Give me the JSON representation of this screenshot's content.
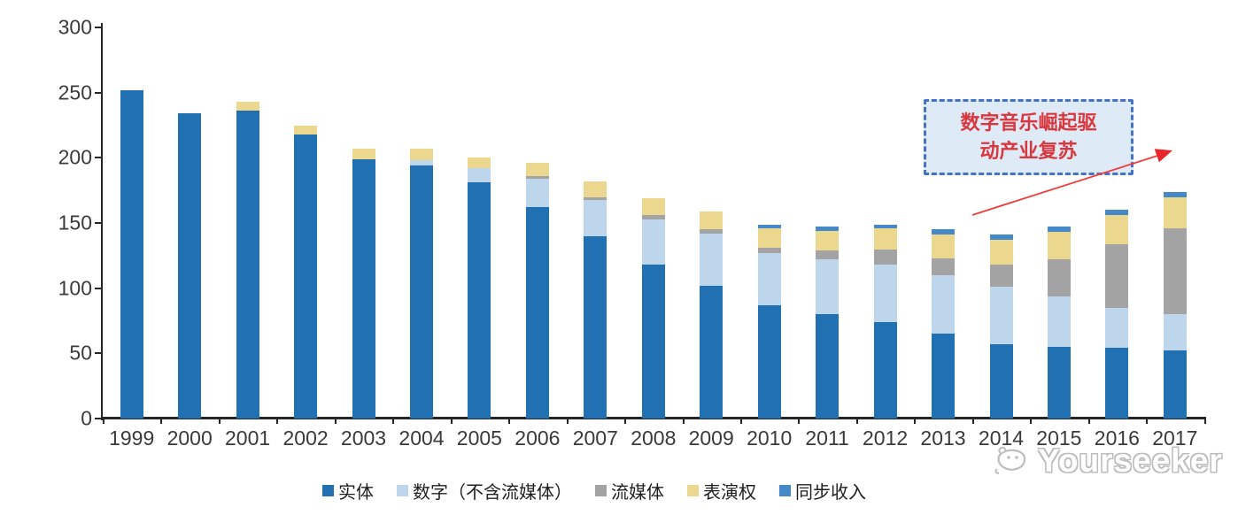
{
  "chart_data": {
    "type": "bar",
    "stacked": true,
    "title": "",
    "xlabel": "",
    "ylabel": "",
    "ylim": [
      0,
      300
    ],
    "yticks": [
      0,
      50,
      100,
      150,
      200,
      250,
      300
    ],
    "grid": false,
    "legend_position": "bottom",
    "categories": [
      "1999",
      "2000",
      "2001",
      "2002",
      "2003",
      "2004",
      "2005",
      "2006",
      "2007",
      "2008",
      "2009",
      "2010",
      "2011",
      "2012",
      "2013",
      "2014",
      "2015",
      "2016",
      "2017"
    ],
    "series": [
      {
        "name": "实体",
        "color": "#2171b2",
        "values": [
          252,
          234,
          236,
          218,
          199,
          194,
          181,
          162,
          140,
          118,
          102,
          87,
          80,
          74,
          65,
          57,
          55,
          54,
          52
        ]
      },
      {
        "name": "数字（不含流媒体）",
        "color": "#bdd6ec",
        "values": [
          0,
          0,
          0,
          0,
          0,
          4,
          11,
          22,
          28,
          35,
          40,
          40,
          42,
          44,
          45,
          44,
          39,
          31,
          28
        ]
      },
      {
        "name": "流媒体",
        "color": "#a3a3a3",
        "values": [
          0,
          0,
          0,
          0,
          0,
          0,
          0,
          2,
          2,
          3,
          3,
          4,
          7,
          12,
          13,
          17,
          28,
          49,
          66
        ]
      },
      {
        "name": "表演权",
        "color": "#ebd78d",
        "values": [
          0,
          0,
          7,
          7,
          8,
          9,
          8,
          10,
          12,
          13,
          14,
          15,
          15,
          16,
          18,
          19,
          21,
          22,
          24
        ]
      },
      {
        "name": "同步收入",
        "color": "#4689c9",
        "values": [
          0,
          0,
          0,
          0,
          0,
          0,
          0,
          0,
          0,
          0,
          0,
          3,
          3,
          3,
          4,
          4,
          4,
          4,
          4
        ]
      }
    ]
  },
  "annotation": {
    "line1": "数字音乐崛起驱",
    "line2": "动产业复苏",
    "border_color": "#4472c4",
    "fill_color": "#deeaf6",
    "text_color": "#d9373d",
    "arrow_color": "#f23b3b"
  },
  "watermark": {
    "text": "Yourseeker",
    "icon": "yourseeker-logo-icon",
    "color": "#bdbdbd"
  }
}
